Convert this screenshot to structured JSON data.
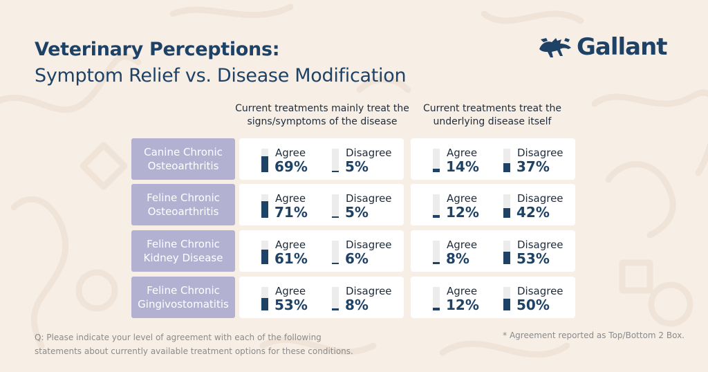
{
  "header": {
    "title_bold": "Veterinary Perceptions:",
    "title_light": "Symptom Relief vs. Disease Modification"
  },
  "brand": {
    "name": "Gallant",
    "logo_icon": "pack-of-animals-icon"
  },
  "colors": {
    "bar": "#1e4166",
    "track": "#ececec",
    "row_label_bg": "#b3b1d2",
    "background": "#f7efe6"
  },
  "chart_data": {
    "type": "table",
    "title": "Veterinary Perceptions: Symptom Relief vs. Disease Modification",
    "columns": [
      "Current treatments mainly treat the signs/symptoms of the disease",
      "Current treatments treat the underlying disease itself"
    ],
    "response_labels": [
      "Agree",
      "Disagree"
    ],
    "unit": "%",
    "rows": [
      {
        "label": "Canine Chronic Osteoarthritis",
        "label_line1": "Canine Chronic",
        "label_line2": "Osteoarthritis",
        "symptoms": {
          "agree": 69,
          "disagree": 5,
          "agree_text": "69%",
          "disagree_text": "5%"
        },
        "underlying": {
          "agree": 14,
          "disagree": 37,
          "agree_text": "14%",
          "disagree_text": "37%"
        }
      },
      {
        "label": "Feline Chronic Osteoarthritis",
        "label_line1": "Feline Chronic",
        "label_line2": "Osteoarthritis",
        "symptoms": {
          "agree": 71,
          "disagree": 5,
          "agree_text": "71%",
          "disagree_text": "5%"
        },
        "underlying": {
          "agree": 12,
          "disagree": 42,
          "agree_text": "12%",
          "disagree_text": "42%"
        }
      },
      {
        "label": "Feline Chronic Kidney Disease",
        "label_line1": "Feline Chronic",
        "label_line2": "Kidney Disease",
        "symptoms": {
          "agree": 61,
          "disagree": 6,
          "agree_text": "61%",
          "disagree_text": "6%"
        },
        "underlying": {
          "agree": 8,
          "disagree": 53,
          "agree_text": "8%",
          "disagree_text": "53%"
        }
      },
      {
        "label": "Feline Chronic Gingivostomatitis",
        "label_line1": "Feline Chronic",
        "label_line2": "Gingivostomatitis",
        "symptoms": {
          "agree": 53,
          "disagree": 8,
          "agree_text": "53%",
          "disagree_text": "8%"
        },
        "underlying": {
          "agree": 12,
          "disagree": 50,
          "agree_text": "12%",
          "disagree_text": "50%"
        }
      }
    ]
  },
  "col_heads": {
    "symptoms_line1": "Current treatments mainly treat the",
    "symptoms_line2": "signs/symptoms of the disease",
    "underlying_line1": "Current treatments treat the",
    "underlying_line2": "underlying disease itself"
  },
  "footnotes": {
    "question_line1": "Q: Please indicate your level of agreement with each of the following",
    "question_line2": "statements about currently available treatment options for these conditions.",
    "note": "* Agreement reported as Top/Bottom 2 Box."
  }
}
